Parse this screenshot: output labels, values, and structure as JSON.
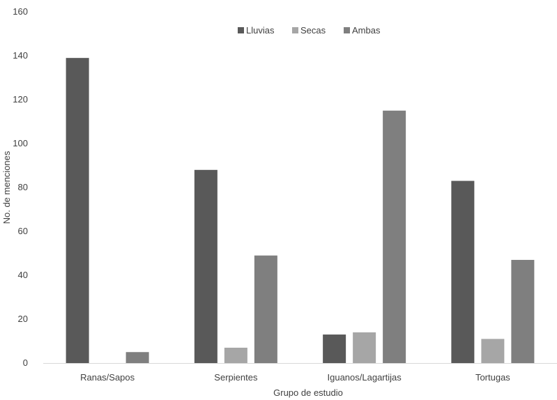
{
  "chart_data": {
    "type": "bar",
    "categories": [
      "Ranas/Sapos",
      "Serpientes",
      "Iguanos/Lagartijas",
      "Tortugas"
    ],
    "series": [
      {
        "name": "Lluvias",
        "values": [
          139,
          88,
          13,
          83
        ],
        "color": "#595959"
      },
      {
        "name": "Secas",
        "values": [
          0,
          7,
          14,
          11
        ],
        "color": "#a6a6a6"
      },
      {
        "name": "Ambas",
        "values": [
          5,
          49,
          115,
          47
        ],
        "color": "#7f7f7f"
      }
    ],
    "xlabel": "Grupo de estudio",
    "ylabel": "No. de menciones",
    "ylim": [
      0,
      160
    ],
    "yticks": [
      0,
      20,
      40,
      60,
      80,
      100,
      120,
      140,
      160
    ],
    "grid": false,
    "legend_position": "top-center"
  }
}
